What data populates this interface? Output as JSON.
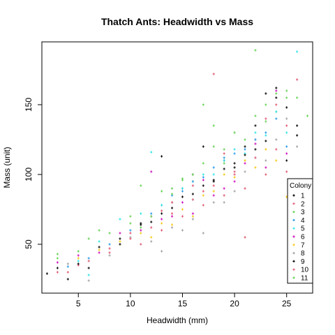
{
  "chart_data": {
    "type": "scatter",
    "title": "Thatch Ants: Headwidth vs Mass",
    "xlabel": "Headwidth (mm)",
    "ylabel": "Mass (unit)",
    "xlim": [
      1.5,
      27.5
    ],
    "ylim": [
      15,
      195
    ],
    "xticks": [
      5,
      10,
      15,
      20,
      25
    ],
    "yticks": [
      50,
      100,
      150
    ],
    "grid": false,
    "legend": {
      "title": "Colony",
      "placement": "right-bottom",
      "entries": [
        "1",
        "2",
        "3",
        "4",
        "5",
        "6",
        "7",
        "8",
        "9",
        "10",
        "11"
      ]
    },
    "series": [
      {
        "name": "1",
        "color": "#000000",
        "points": [
          [
            2,
            29
          ],
          [
            4,
            25
          ],
          [
            6,
            33
          ],
          [
            9,
            50
          ],
          [
            11,
            65
          ],
          [
            13,
            113
          ],
          [
            14,
            80
          ],
          [
            16,
            100
          ],
          [
            17,
            120
          ],
          [
            19,
            110
          ],
          [
            21,
            120
          ],
          [
            22,
            135
          ],
          [
            23,
            158
          ],
          [
            24,
            162
          ],
          [
            25,
            148
          ],
          [
            26,
            135
          ],
          [
            26,
            128
          ],
          [
            18,
            95
          ],
          [
            20,
            105
          ],
          [
            15,
            90
          ]
        ]
      },
      {
        "name": "2",
        "color": "#DF536B",
        "points": [
          [
            3,
            30
          ],
          [
            5,
            35
          ],
          [
            8,
            47
          ],
          [
            10,
            58
          ],
          [
            12,
            70
          ],
          [
            14,
            80
          ],
          [
            16,
            92
          ],
          [
            18,
            172
          ],
          [
            19,
            115
          ],
          [
            21,
            55
          ],
          [
            22,
            125
          ],
          [
            23,
            140
          ],
          [
            24,
            150
          ],
          [
            25,
            135
          ],
          [
            26,
            168
          ],
          [
            20,
            100
          ],
          [
            17,
            88
          ],
          [
            15,
            84
          ],
          [
            13,
            74
          ]
        ]
      },
      {
        "name": "3",
        "color": "#61D04F",
        "points": [
          [
            3,
            43
          ],
          [
            5,
            45
          ],
          [
            7,
            60
          ],
          [
            10,
            65
          ],
          [
            12,
            70
          ],
          [
            14,
            90
          ],
          [
            15,
            97
          ],
          [
            17,
            150
          ],
          [
            18,
            120
          ],
          [
            20,
            130
          ],
          [
            22,
            189
          ],
          [
            23,
            150
          ],
          [
            24,
            145
          ],
          [
            25,
            155
          ],
          [
            27,
            142
          ],
          [
            21,
            110
          ],
          [
            19,
            108
          ],
          [
            16,
            95
          ],
          [
            11,
            62
          ]
        ]
      },
      {
        "name": "4",
        "color": "#2297E6",
        "points": [
          [
            4,
            34
          ],
          [
            6,
            40
          ],
          [
            8,
            50
          ],
          [
            10,
            60
          ],
          [
            12,
            72
          ],
          [
            14,
            85
          ],
          [
            16,
            95
          ],
          [
            18,
            105
          ],
          [
            20,
            115
          ],
          [
            22,
            125
          ],
          [
            24,
            140
          ],
          [
            25,
            120
          ],
          [
            21,
            118
          ],
          [
            17,
            98
          ],
          [
            19,
            112
          ],
          [
            23,
            130
          ],
          [
            15,
            88
          ],
          [
            13,
            78
          ]
        ]
      },
      {
        "name": "5",
        "color": "#28E2E5",
        "points": [
          [
            5,
            38
          ],
          [
            6,
            28
          ],
          [
            7,
            52
          ],
          [
            9,
            68
          ],
          [
            11,
            72
          ],
          [
            13,
            78
          ],
          [
            15,
            90
          ],
          [
            17,
            100
          ],
          [
            19,
            110
          ],
          [
            20,
            118
          ],
          [
            22,
            130
          ],
          [
            24,
            145
          ],
          [
            26,
            188
          ],
          [
            25,
            130
          ],
          [
            21,
            115
          ],
          [
            23,
            128
          ],
          [
            18,
            100
          ],
          [
            12,
            116
          ],
          [
            16,
            82
          ]
        ]
      },
      {
        "name": "6",
        "color": "#CD0BBC",
        "points": [
          [
            3,
            37
          ],
          [
            5,
            42
          ],
          [
            7,
            44
          ],
          [
            9,
            58
          ],
          [
            11,
            60
          ],
          [
            13,
            68
          ],
          [
            15,
            80
          ],
          [
            17,
            96
          ],
          [
            18,
            85
          ],
          [
            20,
            95
          ],
          [
            21,
            108
          ],
          [
            22,
            122
          ],
          [
            24,
            160
          ],
          [
            25,
            115
          ],
          [
            23,
            105
          ],
          [
            19,
            90
          ],
          [
            16,
            72
          ],
          [
            14,
            70
          ],
          [
            12,
            102
          ]
        ]
      },
      {
        "name": "7",
        "color": "#F5C710",
        "points": [
          [
            5,
            40
          ],
          [
            7,
            46
          ],
          [
            9,
            52
          ],
          [
            11,
            58
          ],
          [
            13,
            65
          ],
          [
            15,
            75
          ],
          [
            17,
            85
          ],
          [
            19,
            100
          ],
          [
            21,
            110
          ],
          [
            23,
            118
          ],
          [
            25,
            84
          ],
          [
            24,
            110
          ],
          [
            22,
            105
          ],
          [
            20,
            98
          ],
          [
            18,
            88
          ],
          [
            16,
            70
          ],
          [
            14,
            64
          ],
          [
            12,
            55
          ]
        ]
      },
      {
        "name": "8",
        "color": "#9E9E9E",
        "points": [
          [
            4,
            36
          ],
          [
            6,
            24
          ],
          [
            8,
            42
          ],
          [
            10,
            55
          ],
          [
            12,
            52
          ],
          [
            13,
            45
          ],
          [
            15,
            60
          ],
          [
            17,
            58
          ],
          [
            19,
            80
          ],
          [
            21,
            102
          ],
          [
            22,
            112
          ],
          [
            24,
            125
          ],
          [
            25,
            140
          ],
          [
            26,
            120
          ],
          [
            23,
            110
          ],
          [
            20,
            88
          ],
          [
            18,
            80
          ],
          [
            16,
            68
          ],
          [
            14,
            62
          ]
        ]
      },
      {
        "name": "9",
        "color": "#000000",
        "points": [
          [
            3,
            33
          ],
          [
            5,
            36
          ],
          [
            7,
            48
          ],
          [
            9,
            54
          ],
          [
            11,
            64
          ],
          [
            13,
            72
          ],
          [
            15,
            84
          ],
          [
            17,
            92
          ],
          [
            19,
            104
          ],
          [
            21,
            114
          ],
          [
            23,
            124
          ],
          [
            24,
            155
          ],
          [
            25,
            110
          ],
          [
            22,
            118
          ],
          [
            20,
            108
          ],
          [
            18,
            96
          ],
          [
            16,
            86
          ],
          [
            14,
            76
          ],
          [
            12,
            66
          ]
        ]
      },
      {
        "name": "10",
        "color": "#DF536B",
        "points": [
          [
            4,
            30
          ],
          [
            6,
            38
          ],
          [
            8,
            44
          ],
          [
            10,
            54
          ],
          [
            12,
            62
          ],
          [
            14,
            72
          ],
          [
            16,
            82
          ],
          [
            18,
            92
          ],
          [
            20,
            102
          ],
          [
            22,
            112
          ],
          [
            24,
            118
          ],
          [
            25,
            102
          ],
          [
            23,
            100
          ],
          [
            21,
            90
          ],
          [
            19,
            85
          ],
          [
            17,
            78
          ],
          [
            15,
            70
          ],
          [
            13,
            60
          ],
          [
            11,
            50
          ]
        ]
      },
      {
        "name": "11",
        "color": "#61D04F",
        "points": [
          [
            3,
            40
          ],
          [
            6,
            54
          ],
          [
            8,
            58
          ],
          [
            11,
            92
          ],
          [
            13,
            88
          ],
          [
            15,
            96
          ],
          [
            17,
            108
          ],
          [
            18,
            135
          ],
          [
            20,
            130
          ],
          [
            22,
            142
          ],
          [
            24,
            158
          ],
          [
            26,
            155
          ],
          [
            25,
            160
          ],
          [
            23,
            138
          ],
          [
            21,
            125
          ],
          [
            19,
            118
          ],
          [
            16,
            100
          ],
          [
            14,
            86
          ],
          [
            10,
            70
          ]
        ]
      }
    ]
  }
}
